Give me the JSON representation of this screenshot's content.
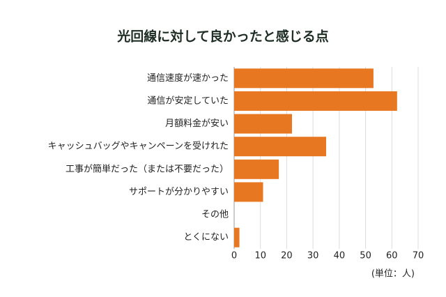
{
  "chart_data": {
    "type": "bar",
    "title": "光回線に対して良かったと感じる点",
    "categories": [
      "通信速度が速かった",
      "通信が安定していた",
      "月額料金が安い",
      "キャッシュバッグやキャンペーンを受けれた",
      "工事が簡単だった（または不要だった）",
      "サポートが分かりやすい",
      "その他",
      "とくにない"
    ],
    "values": [
      53,
      62,
      22,
      35,
      17,
      11,
      0,
      2
    ],
    "color": "#e87722",
    "xlim": [
      0,
      70
    ],
    "xticks": [
      0,
      10,
      20,
      30,
      40,
      50,
      60,
      70
    ],
    "grid": true,
    "unit_label": "(単位：人)"
  }
}
